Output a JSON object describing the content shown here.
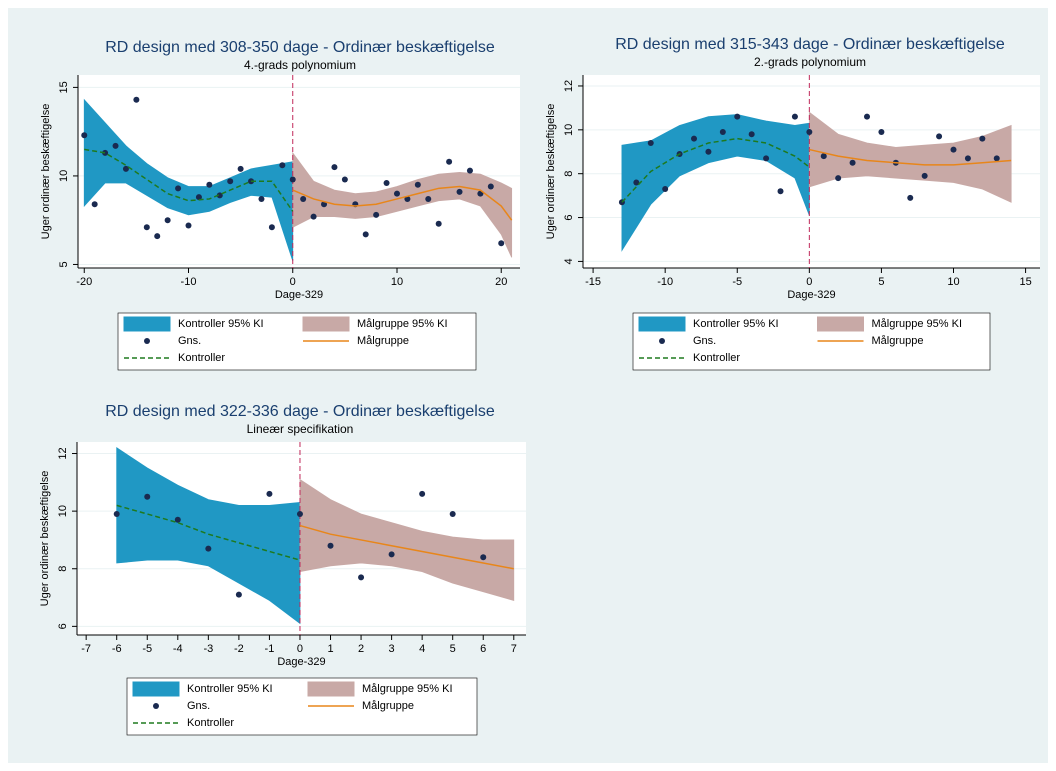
{
  "chart_data": [
    {
      "type": "scatter",
      "title": "RD design med 308-350 dage - Ordinær beskæftigelse",
      "subtitle": "4.-grads polynomium",
      "x_label": "Dage-329",
      "y_label": "Uger ordinær beskæftigelse",
      "xlim": [
        -20.6,
        21.8
      ],
      "ylim": [
        4.8,
        15.7
      ],
      "xticks": [
        -20,
        -10,
        0,
        10,
        20
      ],
      "yticks": [
        5,
        10,
        15
      ],
      "grid": true,
      "cutoff": 0,
      "series": [
        {
          "name": "Kontroller 95% KI",
          "kind": "band",
          "color": "#2098c4",
          "x": [
            -20,
            -18,
            -16,
            -14,
            -12,
            -10,
            -8,
            -6,
            -4,
            -2,
            0
          ],
          "lower": [
            8.3,
            9.6,
            9.6,
            8.9,
            8.2,
            7.8,
            8.0,
            8.5,
            8.9,
            8.8,
            5.2
          ],
          "upper": [
            14.3,
            13.0,
            11.7,
            10.7,
            9.9,
            9.4,
            9.4,
            9.9,
            10.4,
            10.6,
            10.8
          ]
        },
        {
          "name": "Målgruppe 95% KI",
          "kind": "band",
          "color": "#c8a9a6",
          "x": [
            0,
            2,
            4,
            6,
            8,
            10,
            12,
            14,
            16,
            18,
            20,
            21
          ],
          "lower": [
            7.1,
            7.7,
            7.7,
            7.6,
            7.7,
            8.0,
            8.3,
            8.6,
            8.7,
            8.3,
            6.7,
            5.4
          ],
          "upper": [
            11.3,
            9.7,
            9.2,
            9.0,
            9.1,
            9.4,
            9.8,
            10.1,
            10.2,
            10.1,
            9.6,
            9.3
          ]
        },
        {
          "name": "Gns.",
          "kind": "points",
          "color": "#1a2a50",
          "x": [
            -20,
            -19,
            -18,
            -17,
            -16,
            -15,
            -14,
            -13,
            -12,
            -11,
            -10,
            -9,
            -8,
            -7,
            -6,
            -5,
            -4,
            -3,
            -2,
            -1,
            0,
            1,
            2,
            3,
            4,
            5,
            6,
            7,
            8,
            9,
            10,
            11,
            12,
            13,
            14,
            15,
            16,
            17,
            18,
            19,
            20
          ],
          "values": [
            12.3,
            8.4,
            11.3,
            11.7,
            10.4,
            14.3,
            7.1,
            6.6,
            7.5,
            9.3,
            7.2,
            8.8,
            9.5,
            8.9,
            9.7,
            10.4,
            9.7,
            8.7,
            7.1,
            10.6,
            9.8,
            8.7,
            7.7,
            8.4,
            10.5,
            9.8,
            8.4,
            6.7,
            7.8,
            9.6,
            9.0,
            8.7,
            9.5,
            8.7,
            7.3,
            10.8,
            9.1,
            10.3,
            9.0,
            9.4,
            6.2
          ]
        },
        {
          "name": "Målgruppe",
          "kind": "line",
          "color": "#e8861a",
          "x": [
            0,
            2,
            4,
            6,
            8,
            10,
            12,
            14,
            16,
            18,
            20,
            21
          ],
          "values": [
            9.2,
            8.7,
            8.4,
            8.3,
            8.4,
            8.7,
            9.0,
            9.3,
            9.4,
            9.2,
            8.3,
            7.5
          ]
        },
        {
          "name": "Kontroller",
          "kind": "line",
          "dash": true,
          "color": "#1e7a1e",
          "x": [
            -20,
            -18,
            -16,
            -14,
            -12,
            -10,
            -8,
            -6,
            -4,
            -2,
            0
          ],
          "values": [
            11.5,
            11.3,
            10.6,
            9.8,
            9.0,
            8.6,
            8.7,
            9.2,
            9.7,
            9.7,
            8.0
          ]
        }
      ]
    },
    {
      "type": "scatter",
      "title": "RD design med 315-343 dage - Ordinær beskæftigelse",
      "subtitle": "2.-grads polynomium",
      "x_label": "Dage-329",
      "y_label": "Uger ordinær beskæftigelse",
      "xlim": [
        -15.7,
        16.0
      ],
      "ylim": [
        3.7,
        12.5
      ],
      "xticks": [
        -15,
        -10,
        -5,
        0,
        5,
        10,
        15
      ],
      "yticks": [
        4,
        6,
        8,
        10,
        12
      ],
      "grid": true,
      "cutoff": 0,
      "series": [
        {
          "name": "Kontroller 95% KI",
          "kind": "band",
          "color": "#2098c4",
          "x": [
            -13,
            -11,
            -9,
            -7,
            -5,
            -3,
            -1,
            0
          ],
          "lower": [
            4.5,
            6.6,
            7.9,
            8.5,
            8.8,
            8.6,
            7.8,
            6.1
          ],
          "upper": [
            9.3,
            9.5,
            10.2,
            10.6,
            10.7,
            10.4,
            10.2,
            10.3
          ]
        },
        {
          "name": "Målgruppe 95% KI",
          "kind": "band",
          "color": "#c8a9a6",
          "x": [
            0,
            2,
            4,
            6,
            8,
            10,
            12,
            14
          ],
          "lower": [
            7.4,
            7.8,
            7.9,
            7.8,
            7.7,
            7.6,
            7.3,
            6.7
          ],
          "upper": [
            10.8,
            9.8,
            9.4,
            9.2,
            9.3,
            9.4,
            9.7,
            10.2
          ]
        },
        {
          "name": "Gns.",
          "kind": "points",
          "color": "#1a2a50",
          "x": [
            -13,
            -12,
            -11,
            -10,
            -9,
            -8,
            -7,
            -6,
            -5,
            -4,
            -3,
            -2,
            -1,
            0,
            1,
            2,
            3,
            4,
            5,
            6,
            7,
            8,
            9,
            10,
            11,
            12,
            13
          ],
          "values": [
            6.7,
            7.6,
            9.4,
            7.3,
            8.9,
            9.6,
            9.0,
            9.9,
            10.6,
            9.8,
            8.7,
            7.2,
            10.6,
            9.9,
            8.8,
            7.8,
            8.5,
            10.6,
            9.9,
            8.5,
            6.9,
            7.9,
            9.7,
            9.1,
            8.7,
            9.6,
            8.7
          ]
        },
        {
          "name": "Målgruppe",
          "kind": "line",
          "color": "#e8861a",
          "x": [
            0,
            2,
            4,
            6,
            8,
            10,
            12,
            14
          ],
          "values": [
            9.1,
            8.8,
            8.6,
            8.5,
            8.4,
            8.4,
            8.5,
            8.6
          ]
        },
        {
          "name": "Kontroller",
          "kind": "line",
          "dash": true,
          "color": "#1e7a1e",
          "x": [
            -13,
            -11,
            -9,
            -7,
            -5,
            -3,
            -1,
            0
          ],
          "values": [
            6.7,
            8.1,
            8.9,
            9.4,
            9.6,
            9.4,
            8.8,
            8.3
          ]
        }
      ]
    },
    {
      "type": "scatter",
      "title": "RD design med 322-336 dage - Ordinær beskæftigelse",
      "subtitle": "Lineær specifikation",
      "x_label": "Dage-329",
      "y_label": "Uger ordinær beskæftigelse",
      "xlim": [
        -7.3,
        7.4
      ],
      "ylim": [
        5.7,
        12.4
      ],
      "xticks": [
        -7,
        -6,
        -5,
        -4,
        -3,
        -2,
        -1,
        0,
        1,
        2,
        3,
        4,
        5,
        6,
        7
      ],
      "yticks": [
        6,
        8,
        10,
        12
      ],
      "grid": true,
      "cutoff": 0,
      "series": [
        {
          "name": "Kontroller 95% KI",
          "kind": "band",
          "color": "#2098c4",
          "x": [
            -6,
            -5,
            -4,
            -3,
            -2,
            -1,
            0
          ],
          "lower": [
            8.2,
            8.3,
            8.3,
            8.1,
            7.5,
            6.9,
            6.1
          ],
          "upper": [
            12.2,
            11.5,
            10.9,
            10.4,
            10.2,
            10.2,
            10.3
          ]
        },
        {
          "name": "Målgruppe 95% KI",
          "kind": "band",
          "color": "#c8a9a6",
          "x": [
            0,
            1,
            2,
            3,
            4,
            5,
            6,
            7
          ],
          "lower": [
            7.9,
            8.1,
            8.2,
            8.1,
            7.9,
            7.5,
            7.2,
            6.9
          ],
          "upper": [
            11.1,
            10.4,
            9.9,
            9.6,
            9.3,
            9.1,
            9.0,
            9.0
          ]
        },
        {
          "name": "Gns.",
          "kind": "points",
          "color": "#1a2a50",
          "x": [
            -6,
            -5,
            -4,
            -3,
            -2,
            -1,
            0,
            1,
            2,
            3,
            4,
            5,
            6
          ],
          "values": [
            9.9,
            10.5,
            9.7,
            8.7,
            7.1,
            10.6,
            9.9,
            8.8,
            7.7,
            8.5,
            10.6,
            9.9,
            8.4
          ]
        },
        {
          "name": "Målgruppe",
          "kind": "line",
          "color": "#e8861a",
          "x": [
            0,
            1,
            2,
            3,
            4,
            5,
            6,
            7
          ],
          "values": [
            9.5,
            9.2,
            9.0,
            8.8,
            8.6,
            8.4,
            8.2,
            8.0
          ]
        },
        {
          "name": "Kontroller",
          "kind": "line",
          "dash": true,
          "color": "#1e7a1e",
          "x": [
            -6,
            -5,
            -4,
            -3,
            -2,
            -1,
            0
          ],
          "values": [
            10.2,
            9.9,
            9.6,
            9.2,
            8.9,
            8.6,
            8.3
          ]
        }
      ]
    }
  ]
}
